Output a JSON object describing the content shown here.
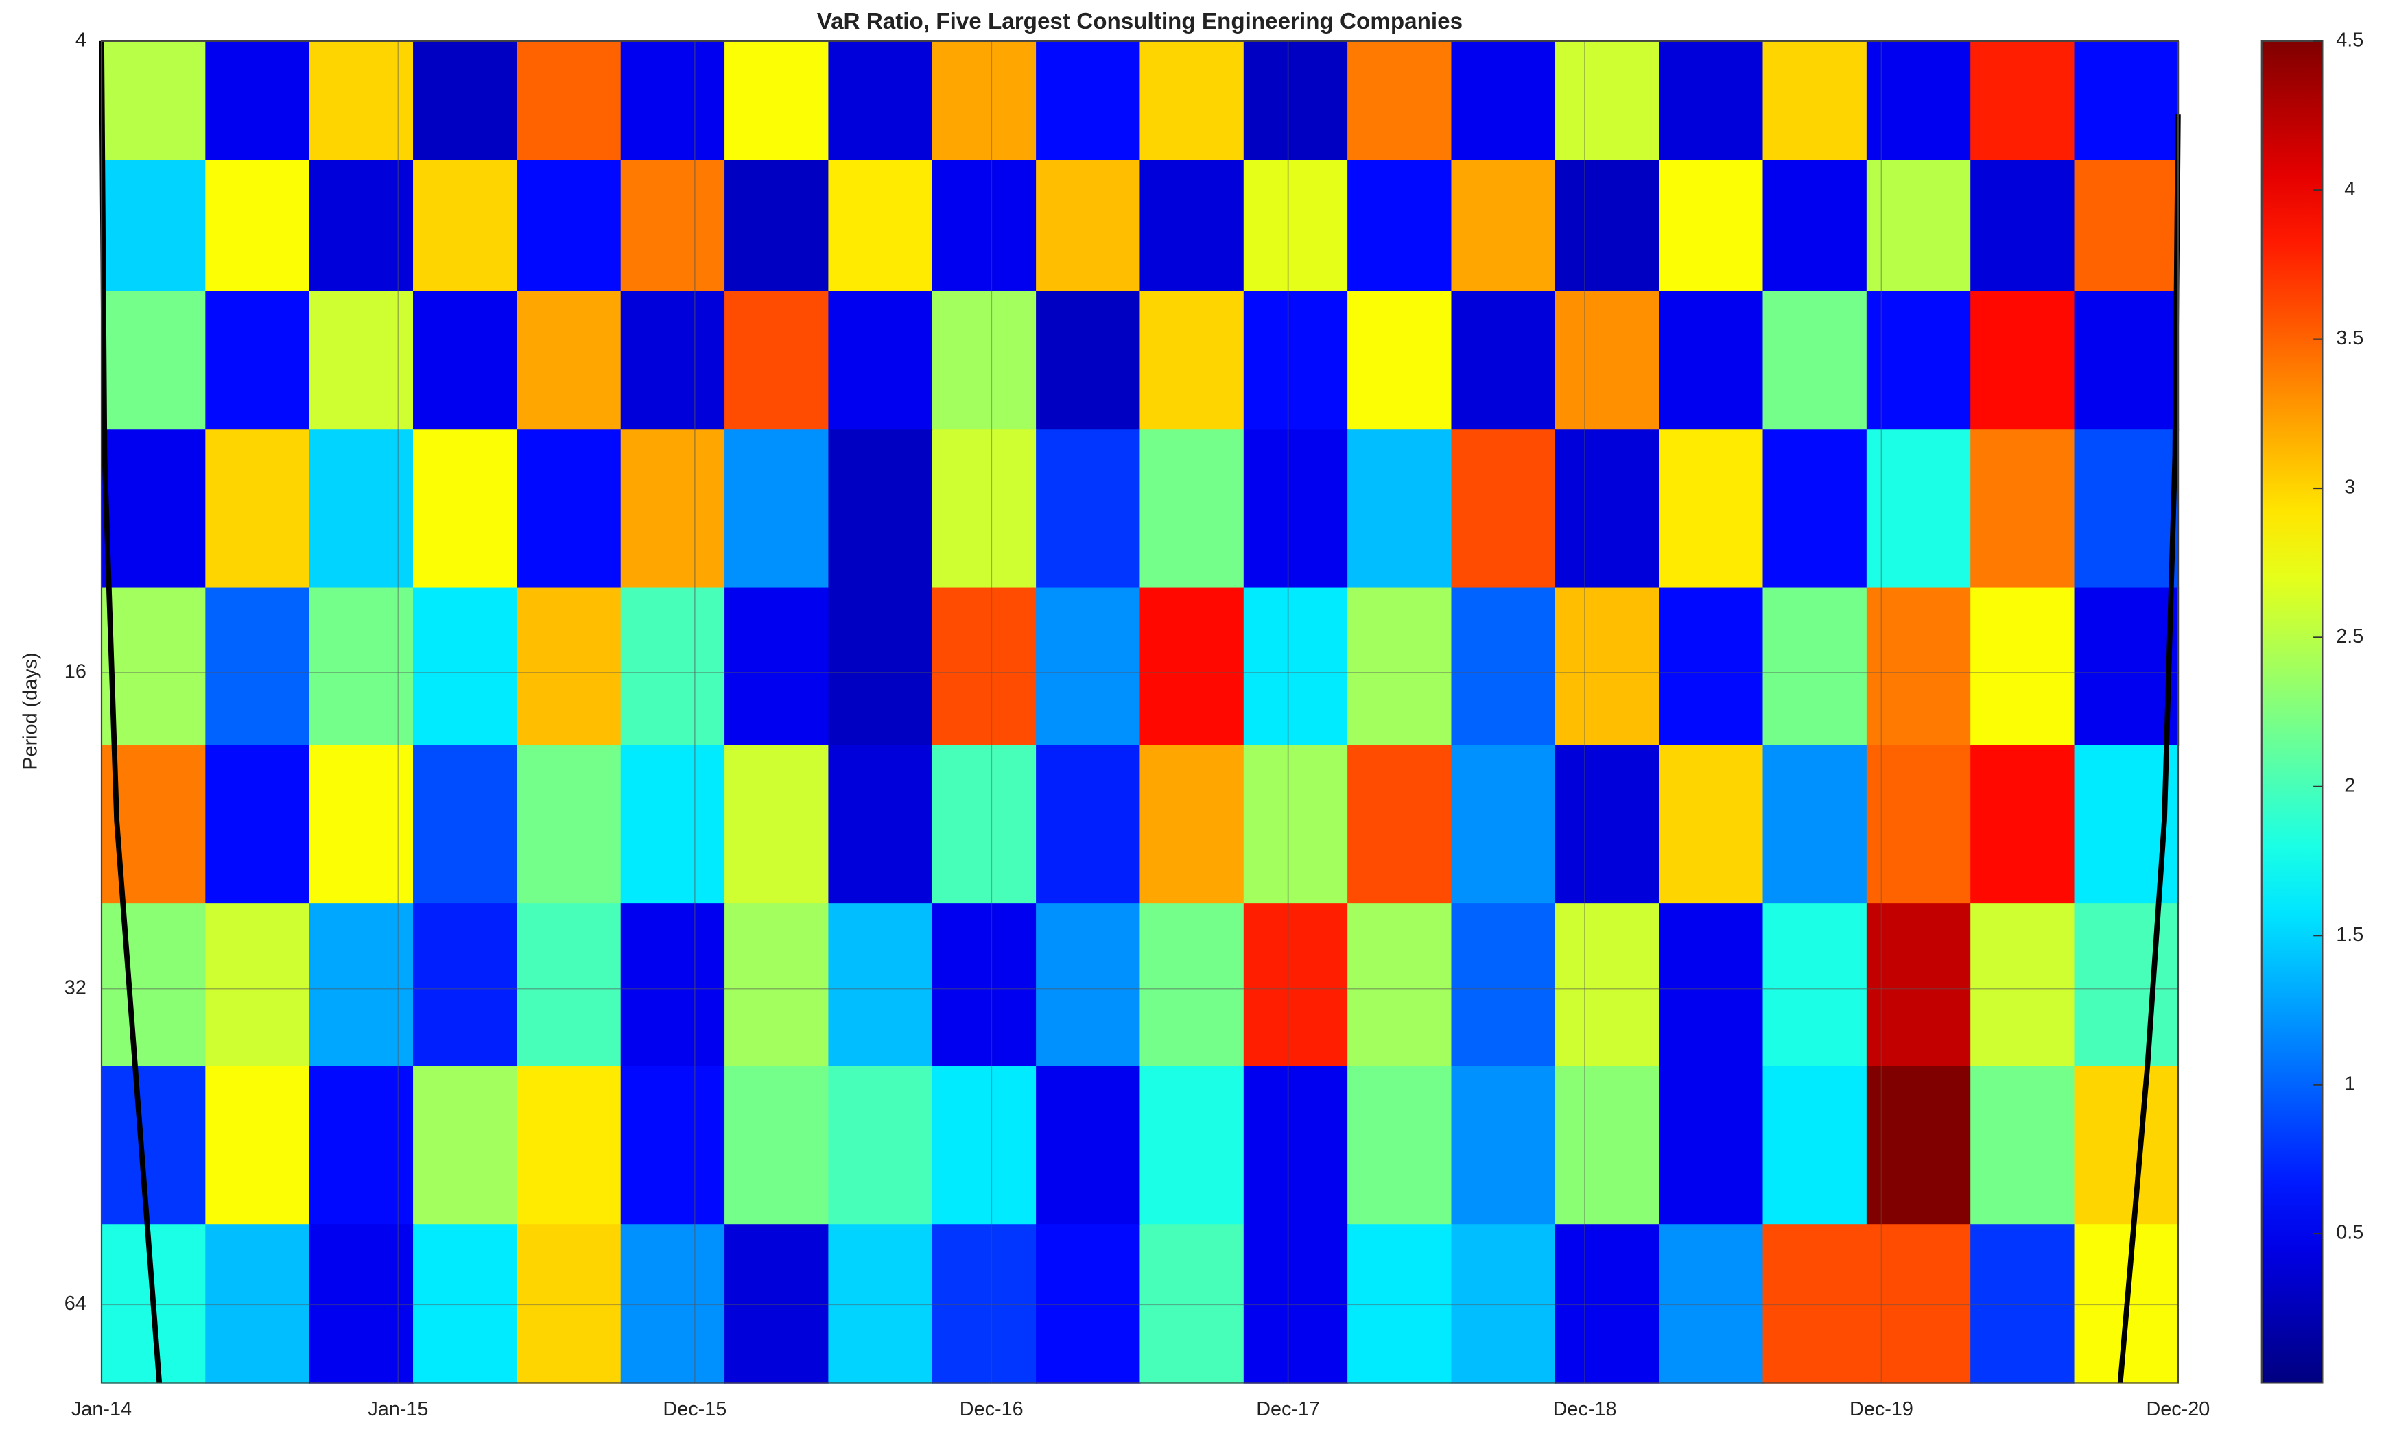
{
  "chart_data": {
    "type": "heatmap",
    "title": "VaR Ratio, Five Largest Consulting Engineering Companies",
    "y_label": "Period (days)",
    "y_log2": true,
    "y_reversed": true,
    "ylim": [
      4,
      76
    ],
    "yticks": [
      4,
      16,
      32,
      64
    ],
    "xticks": [
      "Jan-14",
      "Jan-15",
      "Dec-15",
      "Dec-16",
      "Dec-17",
      "Dec-18",
      "Dec-19",
      "Dec-20"
    ],
    "grid": true,
    "colormap": "jet",
    "clim": [
      0,
      4.5
    ],
    "colorbar_ticks": [
      0.5,
      1,
      1.5,
      2,
      2.5,
      3,
      3.5,
      4,
      4.5
    ],
    "rows": [
      4.5,
      6,
      8,
      11,
      16,
      22,
      32,
      45,
      64
    ],
    "values": [
      [
        2.5,
        0.5,
        3,
        0.3,
        3.5,
        0.5,
        2.8,
        0.4,
        3.2,
        0.6,
        3,
        0.3,
        3.4,
        0.5,
        2.6,
        0.4,
        3,
        0.5,
        3.8,
        0.6
      ],
      [
        1.5,
        2.8,
        0.4,
        3,
        0.6,
        3.4,
        0.3,
        2.9,
        0.5,
        3.1,
        0.4,
        2.7,
        0.6,
        3.2,
        0.3,
        2.8,
        0.5,
        2.5,
        0.4,
        3.5
      ],
      [
        2.2,
        0.6,
        2.6,
        0.5,
        3.2,
        0.4,
        3.6,
        0.5,
        2.4,
        0.3,
        3,
        0.6,
        2.8,
        0.4,
        3.3,
        0.5,
        2.2,
        0.6,
        3.9,
        0.5
      ],
      [
        0.5,
        3,
        1.5,
        2.8,
        0.6,
        3.2,
        1.2,
        0.3,
        2.6,
        0.8,
        2.2,
        0.5,
        1.4,
        3.6,
        0.4,
        2.9,
        0.6,
        1.8,
        3.4,
        0.9
      ],
      [
        2.4,
        1,
        2.2,
        1.6,
        3.1,
        2,
        0.5,
        0.3,
        3.6,
        1.2,
        3.9,
        1.6,
        2.4,
        1,
        3.1,
        0.6,
        2.2,
        3.4,
        2.8,
        0.5
      ],
      [
        3.4,
        0.6,
        2.8,
        0.9,
        2.2,
        1.6,
        2.6,
        0.4,
        2,
        0.7,
        3.2,
        2.4,
        3.6,
        1.2,
        0.4,
        3,
        1.2,
        3.5,
        3.9,
        1.6
      ],
      [
        2.3,
        2.6,
        1.3,
        0.7,
        2,
        0.5,
        2.4,
        1.4,
        0.5,
        1.2,
        2.2,
        3.8,
        2.4,
        1,
        2.6,
        0.5,
        1.8,
        4.2,
        2.6,
        2
      ],
      [
        0.8,
        2.8,
        0.6,
        2.4,
        2.9,
        0.6,
        2.2,
        2,
        1.6,
        0.5,
        1.8,
        0.5,
        2.2,
        1.2,
        2.3,
        0.5,
        1.6,
        4.5,
        2.2,
        3
      ],
      [
        1.8,
        1.4,
        0.5,
        1.6,
        3,
        1.2,
        0.4,
        1.5,
        0.8,
        0.6,
        2,
        0.5,
        1.6,
        1.4,
        0.5,
        1.2,
        3.6,
        3.6,
        0.8,
        2.8
      ]
    ]
  }
}
